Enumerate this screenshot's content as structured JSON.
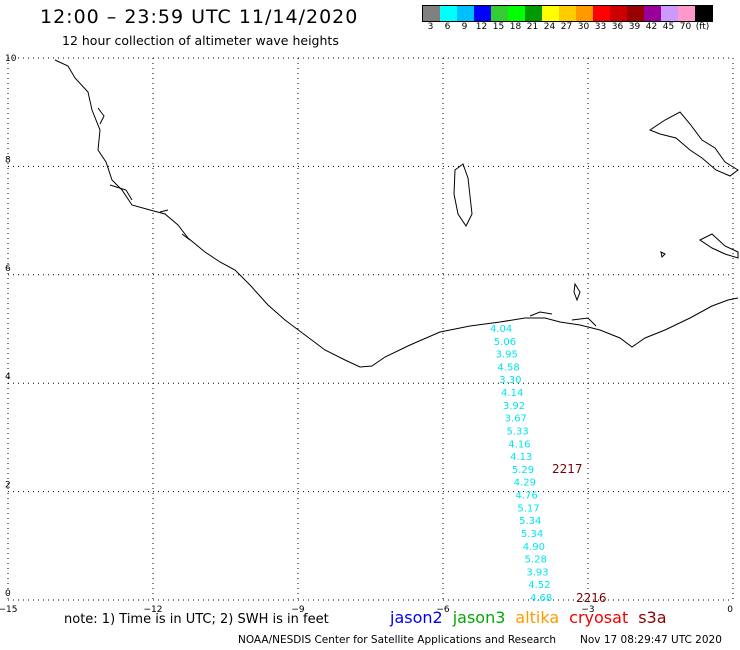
{
  "header": {
    "title": "12:00 – 23:59 UTC 11/14/2020",
    "subtitle": "12 hour collection of altimeter wave heights"
  },
  "colorbar": {
    "colors": [
      "#808080",
      "#00ffff",
      "#00bfff",
      "#0000ff",
      "#33cc33",
      "#00ff00",
      "#009900",
      "#ffff00",
      "#ffcc00",
      "#ff9900",
      "#ff0000",
      "#cc0000",
      "#990000",
      "#990099",
      "#cc99ff",
      "#ff99cc",
      "#000000"
    ],
    "labels": [
      "3",
      "6",
      "9",
      "12",
      "15",
      "18",
      "21",
      "24",
      "27",
      "30",
      "33",
      "36",
      "39",
      "42",
      "45",
      "70",
      "(ft)"
    ]
  },
  "axes": {
    "x_ticks": [
      "−15",
      "−12",
      "−9",
      "−6",
      "−3",
      "0"
    ],
    "y_ticks": [
      "10",
      "8",
      "6",
      "4",
      "2",
      "0"
    ],
    "xlim": [
      -15,
      0
    ],
    "ylim": [
      0,
      10
    ]
  },
  "track": {
    "color": "#00e5ee",
    "values": [
      "4.04",
      "5.06",
      "3.95",
      "4.58",
      "3.30",
      "4.14",
      "3.92",
      "3.67",
      "5.33",
      "4.16",
      "4.13",
      "5.29",
      "4.29",
      "4.76",
      "5.17",
      "5.34",
      "5.34",
      "4.90",
      "5.28",
      "3.93",
      "4.52",
      "4.68"
    ],
    "pass_labels": [
      "2217",
      "2216"
    ]
  },
  "note": "note: 1) Time is in UTC; 2) SWH is in feet",
  "legend": [
    {
      "name": "jason2",
      "color": "#0000ee"
    },
    {
      "name": "jason3",
      "color": "#00aa00"
    },
    {
      "name": "altika",
      "color": "#ff9900"
    },
    {
      "name": "cryosat",
      "color": "#ee0000"
    },
    {
      "name": "s3a",
      "color": "#880000"
    }
  ],
  "footer": {
    "credit": "NOAA/NESDIS Center for Satellite Applications and Research",
    "timestamp": "Nov 17 08:29:47 UTC 2020"
  }
}
